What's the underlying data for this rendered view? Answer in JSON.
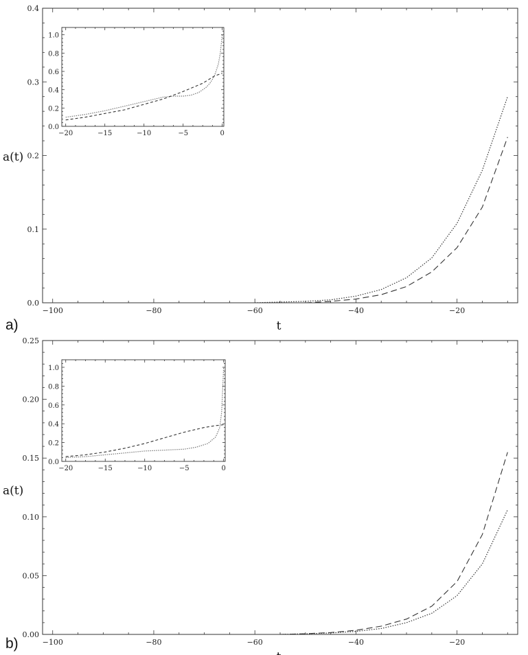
{
  "chart_data": [
    {
      "type": "line",
      "panel_label": "a)",
      "xlabel": "t",
      "ylabel": "a(t)",
      "xlim": [
        -102,
        -8
      ],
      "ylim": [
        0,
        0.4
      ],
      "xticks": [
        -100,
        -80,
        -60,
        -40,
        -20
      ],
      "yticks": [
        0.0,
        0.1,
        0.2,
        0.3,
        0.4
      ],
      "ytick_labels": [
        "0.0",
        "0.1",
        "0.2",
        "0.3",
        "0.4"
      ],
      "grid": false,
      "series": [
        {
          "style": "dotted",
          "x": [
            -60,
            -55,
            -50,
            -45,
            -40,
            -35,
            -30,
            -25,
            -20,
            -15,
            -10
          ],
          "y": [
            0.0,
            0.001,
            0.002,
            0.004,
            0.009,
            0.018,
            0.034,
            0.061,
            0.108,
            0.18,
            0.28
          ]
        },
        {
          "style": "dashed",
          "x": [
            -50,
            -45,
            -40,
            -35,
            -30,
            -25,
            -20,
            -15,
            -10
          ],
          "y": [
            0.0,
            0.002,
            0.005,
            0.011,
            0.022,
            0.042,
            0.075,
            0.13,
            0.225
          ]
        }
      ],
      "inset": {
        "xlim": [
          -20.5,
          0.2
        ],
        "ylim": [
          0,
          1.08
        ],
        "xticks": [
          -20,
          -15,
          -10,
          -5,
          0
        ],
        "yticks": [
          0.0,
          0.2,
          0.4,
          0.6,
          0.8,
          1.0
        ],
        "ytick_labels": [
          "0.0",
          "0.2",
          "0.4",
          "0.6",
          "0.8",
          "1.0"
        ],
        "series": [
          {
            "style": "dotted",
            "x": [
              -20,
              -17.5,
              -15,
              -12.5,
              -10,
              -7.5,
              -6,
              -5,
              -4,
              -3,
              -2,
              -1.5,
              -1,
              -0.5,
              -0.25,
              0
            ],
            "y": [
              0.1,
              0.13,
              0.17,
              0.22,
              0.27,
              0.32,
              0.33,
              0.33,
              0.34,
              0.37,
              0.43,
              0.48,
              0.55,
              0.68,
              0.8,
              1.0
            ]
          },
          {
            "style": "dashed",
            "x": [
              -20,
              -17.5,
              -15,
              -12.5,
              -10,
              -7.5,
              -5,
              -2.5,
              -1,
              0
            ],
            "y": [
              0.07,
              0.1,
              0.14,
              0.18,
              0.24,
              0.3,
              0.38,
              0.47,
              0.55,
              0.58
            ]
          }
        ]
      }
    },
    {
      "type": "line",
      "panel_label": "b)",
      "xlabel": "t",
      "ylabel": "a(t)",
      "xlim": [
        -102,
        -8
      ],
      "ylim": [
        0,
        0.25
      ],
      "xticks": [
        -100,
        -80,
        -60,
        -40,
        -20
      ],
      "yticks": [
        0.0,
        0.05,
        0.1,
        0.15,
        0.2,
        0.25
      ],
      "ytick_labels": [
        "0.00",
        "0.05",
        "0.10",
        "0.15",
        "0.20",
        "0.25"
      ],
      "grid": false,
      "series": [
        {
          "style": "dotted",
          "x": [
            -55,
            -50,
            -45,
            -40,
            -35,
            -30,
            -25,
            -20,
            -15,
            -10
          ],
          "y": [
            0.0,
            0.0005,
            0.0012,
            0.0025,
            0.005,
            0.01,
            0.018,
            0.033,
            0.06,
            0.106
          ]
        },
        {
          "style": "dashed",
          "x": [
            -55,
            -50,
            -45,
            -40,
            -35,
            -30,
            -25,
            -20,
            -15,
            -10
          ],
          "y": [
            0.0,
            0.0006,
            0.0016,
            0.0035,
            0.007,
            0.013,
            0.024,
            0.045,
            0.085,
            0.155
          ]
        }
      ],
      "inset": {
        "xlim": [
          -20.5,
          0.2
        ],
        "ylim": [
          0,
          1.08
        ],
        "xticks": [
          -20,
          -15,
          -10,
          -5,
          0
        ],
        "yticks": [
          0.0,
          0.2,
          0.4,
          0.6,
          0.8,
          1.0
        ],
        "ytick_labels": [
          "0.0",
          "0.2",
          "0.4",
          "0.6",
          "0.8",
          "1.0"
        ],
        "series": [
          {
            "style": "dotted",
            "x": [
              -20,
              -17.5,
              -15,
              -12.5,
              -10,
              -7.5,
              -5,
              -3.5,
              -2,
              -1,
              -0.5,
              -0.25,
              0
            ],
            "y": [
              0.04,
              0.05,
              0.07,
              0.09,
              0.11,
              0.12,
              0.13,
              0.15,
              0.19,
              0.26,
              0.36,
              0.52,
              1.0
            ]
          },
          {
            "style": "dashed",
            "x": [
              -20,
              -17.5,
              -15,
              -12.5,
              -10,
              -7.5,
              -5,
              -2.5,
              -1,
              0
            ],
            "y": [
              0.05,
              0.07,
              0.1,
              0.14,
              0.19,
              0.25,
              0.31,
              0.36,
              0.38,
              0.39
            ]
          }
        ]
      }
    }
  ]
}
